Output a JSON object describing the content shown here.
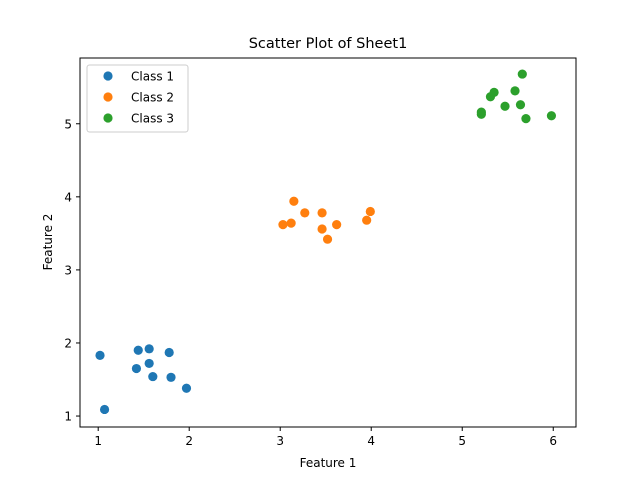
{
  "chart_data": {
    "type": "scatter",
    "title": "Scatter Plot of Sheet1",
    "xlabel": "Feature 1",
    "ylabel": "Feature 2",
    "xlim": [
      0.8,
      6.25
    ],
    "ylim": [
      0.85,
      5.9
    ],
    "xticks": [
      1,
      2,
      3,
      4,
      5,
      6
    ],
    "yticks": [
      1,
      2,
      3,
      4,
      5
    ],
    "grid": false,
    "legend_position": "top-left",
    "series": [
      {
        "name": "Class 1",
        "color": "#1f77b4",
        "points": [
          [
            1.02,
            1.83
          ],
          [
            1.07,
            1.09
          ],
          [
            1.42,
            1.65
          ],
          [
            1.44,
            1.9
          ],
          [
            1.56,
            1.92
          ],
          [
            1.56,
            1.72
          ],
          [
            1.6,
            1.54
          ],
          [
            1.78,
            1.87
          ],
          [
            1.8,
            1.53
          ],
          [
            1.97,
            1.38
          ]
        ]
      },
      {
        "name": "Class 2",
        "color": "#ff7f0e",
        "points": [
          [
            3.03,
            3.62
          ],
          [
            3.12,
            3.64
          ],
          [
            3.15,
            3.94
          ],
          [
            3.27,
            3.78
          ],
          [
            3.46,
            3.56
          ],
          [
            3.46,
            3.78
          ],
          [
            3.52,
            3.42
          ],
          [
            3.62,
            3.62
          ],
          [
            3.95,
            3.68
          ],
          [
            3.99,
            3.8
          ]
        ]
      },
      {
        "name": "Class 3",
        "color": "#2ca02c",
        "points": [
          [
            5.21,
            5.16
          ],
          [
            5.21,
            5.13
          ],
          [
            5.31,
            5.37
          ],
          [
            5.35,
            5.43
          ],
          [
            5.47,
            5.24
          ],
          [
            5.58,
            5.45
          ],
          [
            5.64,
            5.26
          ],
          [
            5.66,
            5.68
          ],
          [
            5.7,
            5.07
          ],
          [
            5.98,
            5.11
          ]
        ]
      }
    ]
  }
}
